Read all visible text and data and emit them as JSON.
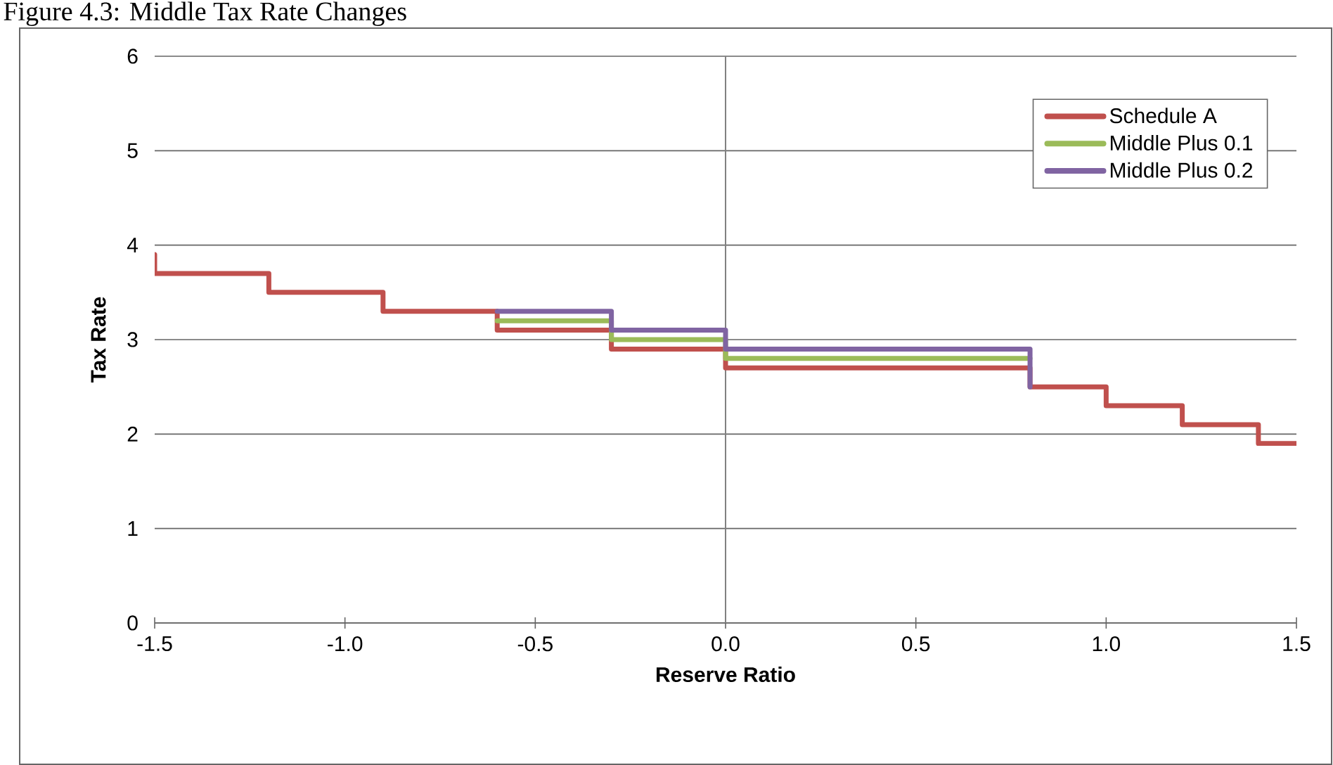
{
  "chart_data": {
    "type": "step",
    "title": "Figure 4.3: Middle Tax Rate Changes",
    "xlabel": "Reserve Ratio",
    "ylabel": "Tax Rate",
    "xlim": [
      -1.5,
      1.5
    ],
    "ylim": [
      0,
      6
    ],
    "xticks": [
      -1.5,
      {
        "value": -1.0,
        "label": "-1.0"
      },
      -0.5,
      {
        "value": 0.0,
        "label": "0.0"
      },
      0.5,
      {
        "value": 1.0,
        "label": "1.0"
      },
      1.5
    ],
    "yticks": [
      0,
      1,
      2,
      3,
      4,
      5,
      6
    ],
    "grid": "y",
    "legend": "top right",
    "marker": "none",
    "line_style": "solid",
    "ref_lines": [
      {
        "axis": "x",
        "value": 0,
        "color": "#808080"
      }
    ],
    "series": [
      {
        "name": "Schedule A",
        "color": "#c0504d",
        "x": [
          -1.5,
          -1.5,
          -1.2,
          -0.9,
          -0.6,
          -0.3,
          0,
          0.8,
          1.0,
          1.2,
          1.4,
          1.5
        ],
        "values": [
          3.9,
          3.7,
          3.5,
          3.3,
          3.1,
          2.9,
          2.7,
          2.5,
          2.3,
          2.1,
          1.9,
          1.9
        ]
      },
      {
        "name": "Middle Plus 0.1",
        "color": "#9bbb59",
        "x": [
          -0.6,
          -0.3,
          0,
          0.8
        ],
        "values": [
          3.2,
          3.0,
          2.8,
          2.8
        ]
      },
      {
        "name": "Middle Plus 0.2",
        "color": "#8064a2",
        "x": [
          -0.6,
          -0.3,
          0,
          0.8,
          0.8
        ],
        "values": [
          3.3,
          3.1,
          2.9,
          2.9,
          2.5
        ]
      }
    ]
  }
}
